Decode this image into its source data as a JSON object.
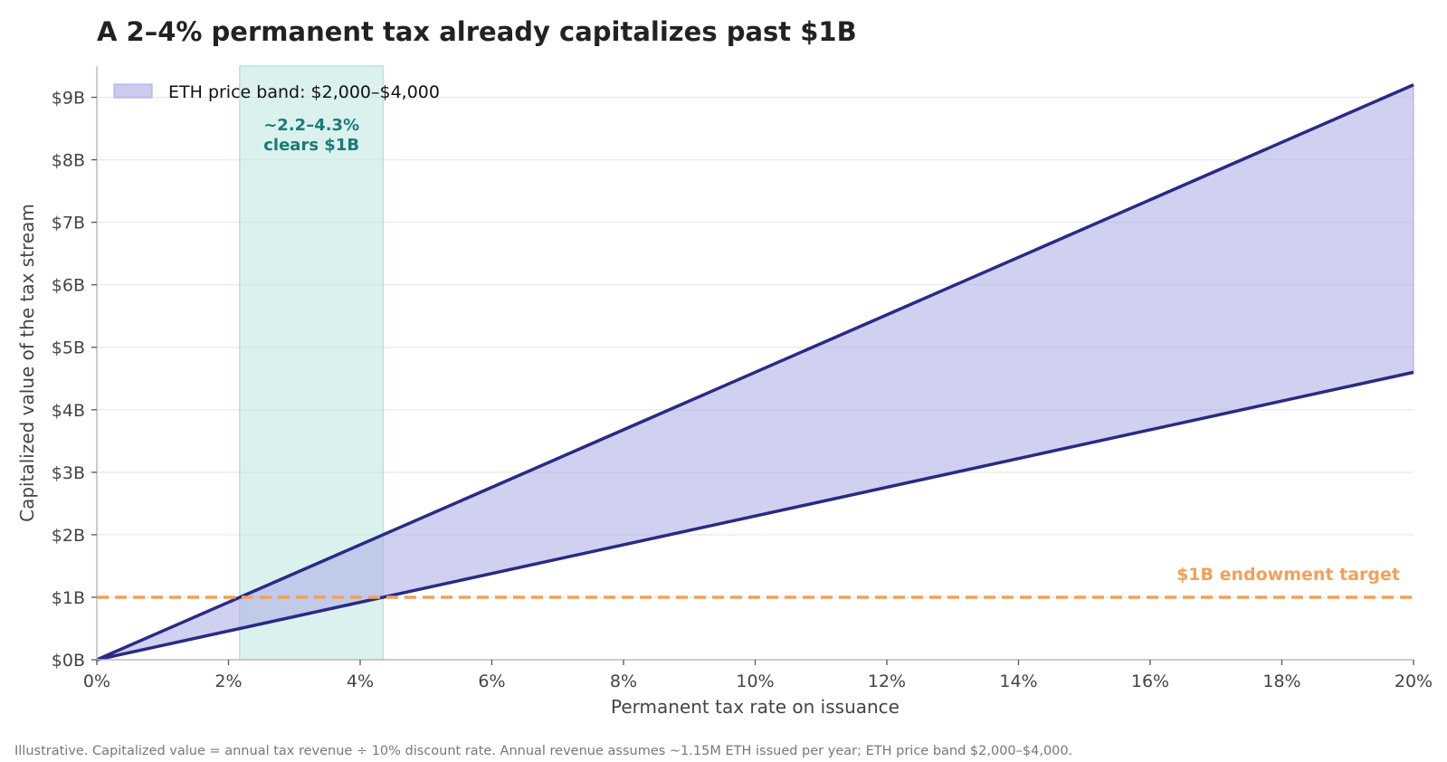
{
  "chart_data": {
    "type": "area",
    "title": "A 2–4% permanent tax already capitalizes past $1B",
    "xlabel": "Permanent tax rate on issuance",
    "ylabel": "Capitalized value of the tax stream",
    "xlim": [
      0,
      20
    ],
    "ylim": [
      0,
      9.5
    ],
    "x_ticks": [
      0,
      2,
      4,
      6,
      8,
      10,
      12,
      14,
      16,
      18,
      20
    ],
    "x_tick_labels": [
      "0%",
      "2%",
      "4%",
      "6%",
      "8%",
      "10%",
      "12%",
      "14%",
      "16%",
      "18%",
      "20%"
    ],
    "y_ticks": [
      0,
      1,
      2,
      3,
      4,
      5,
      6,
      7,
      8,
      9
    ],
    "y_tick_labels": [
      "$0B",
      "$1B",
      "$2B",
      "$3B",
      "$4B",
      "$5B",
      "$6B",
      "$7B",
      "$8B",
      "$9B"
    ],
    "grid": "horizontal",
    "legend_position": "top-left",
    "legend_label": "ETH price band: $2,000–$4,000",
    "series": [
      {
        "x": [
          0,
          20
        ],
        "values": [
          0,
          4.6
        ]
      },
      {
        "x": [
          0,
          20
        ],
        "values": [
          0,
          9.2
        ]
      }
    ],
    "band_between_series": true,
    "highlight_span": {
      "x0": 2.17,
      "x1": 4.35,
      "label_line1": "~2.2–4.3%",
      "label_line2": "clears $1B"
    },
    "reference_line": {
      "y": 1,
      "label": "$1B endowment target"
    },
    "footnote": "Illustrative. Capitalized value = annual tax revenue ÷ 10% discount rate. Annual revenue assumes ~1.15M ETH issued per year; ETH price band $2,000–$4,000.",
    "colors": {
      "line": "#2a2a85",
      "band_fill": "#a9a9e6",
      "highlight_fill": "#b7e3dd",
      "highlight_text": "#1b7a78",
      "reference": "#f2a15a",
      "grid": "#ececec",
      "axis": "#bbbbbb"
    }
  }
}
